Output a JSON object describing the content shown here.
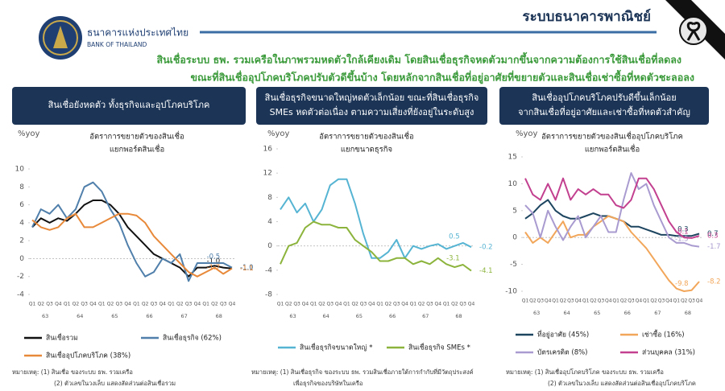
{
  "header": {
    "org_th": "ธนาคารแห่งประเทศไทย",
    "org_en": "BANK OF THAILAND",
    "section": "ระบบธนาคารพาณิชย์"
  },
  "headline": [
    "สินเชื่อระบบ ธพ. รวมเครือในภาพรวมหดตัวใกล้เคียงเดิม โดยสินเชื่อธุรกิจหดตัวมากขึ้นจากความต้องการใช้สินเชื่อที่ลดลง",
    "ขณะที่สินเชื่ออุปโภคบริโภคปรับตัวดีขึ้นบ้าง โดยหลักจากสินเชื่อที่อยู่อาศัยที่ขยายตัวและสินเชื่อเช่าซื้อที่หดตัวชะลอลง"
  ],
  "chart_data": [
    {
      "type": "line",
      "box": [
        "สินเชื่อยังหดตัว ทั้งธุรกิจและอุปโภคบริโภค"
      ],
      "title": [
        "อัตราการขยายตัวของสินเชื่อ",
        "แยกพอร์ตสินเชื่อ"
      ],
      "y_label": "%yoy",
      "categories": [
        "Q1",
        "Q2",
        "Q3",
        "Q4",
        "Q1",
        "Q2",
        "Q3",
        "Q4",
        "Q1",
        "Q2",
        "Q3",
        "Q4",
        "Q1",
        "Q2",
        "Q3",
        "Q4",
        "Q1",
        "Q2",
        "Q3",
        "Q4",
        "Q1",
        "Q2",
        "Q3",
        "Q4"
      ],
      "year_labels": [
        "63",
        "64",
        "65",
        "66",
        "67",
        "68"
      ],
      "ylim": [
        -4,
        10
      ],
      "yticks": [
        -4,
        -2,
        0,
        2,
        4,
        6,
        8,
        10
      ],
      "series": [
        {
          "name": "สินเชื่อรวม",
          "color": "#111111",
          "values": [
            3.5,
            4.5,
            4.0,
            4.5,
            4.2,
            5.0,
            6.0,
            6.5,
            6.5,
            6.0,
            5.0,
            3.5,
            2.5,
            1.5,
            0.5,
            0,
            -0.5,
            -1.0,
            -2.0,
            -1.0,
            -1.0,
            -0.8,
            -1.0,
            -1.1
          ],
          "value_labels": [
            null,
            null,
            null,
            null,
            null,
            null,
            null,
            null,
            null,
            null,
            null,
            null,
            null,
            null,
            null,
            null,
            null,
            null,
            null,
            null,
            null,
            null,
            "-1.0",
            "-1.1"
          ]
        },
        {
          "name": "สินเชื่อธุรกิจ (62%)",
          "color": "#4f7faa",
          "values": [
            3.5,
            5.5,
            5.0,
            6.0,
            4.5,
            5.5,
            8.0,
            8.5,
            7.5,
            5.5,
            4.0,
            1.5,
            -0.5,
            -2.0,
            -1.5,
            0,
            -0.5,
            0.5,
            -2.5,
            -0.5,
            -0.5,
            -0.5,
            -0.5,
            -1.0
          ],
          "value_labels": [
            null,
            null,
            null,
            null,
            null,
            null,
            null,
            null,
            null,
            null,
            null,
            null,
            null,
            null,
            null,
            null,
            null,
            null,
            null,
            null,
            null,
            null,
            "-0.5",
            "-1.0"
          ]
        },
        {
          "name": "สินเชื่ออุปโภคบริโภค (38%)",
          "color": "#e8893a",
          "values": [
            4.3,
            3.5,
            3.2,
            3.5,
            4.5,
            5.0,
            3.5,
            3.5,
            4.0,
            4.5,
            5.0,
            5.0,
            4.8,
            4.0,
            2.5,
            1.5,
            0.5,
            -0.5,
            -1.5,
            -2.0,
            -1.5,
            -1.0,
            -1.7,
            -1.1
          ],
          "value_labels": [
            null,
            null,
            null,
            null,
            null,
            null,
            null,
            null,
            null,
            null,
            null,
            null,
            null,
            null,
            null,
            null,
            null,
            null,
            null,
            null,
            null,
            null,
            "-1.7",
            "-1.1"
          ]
        }
      ],
      "notes": [
        "หมายเหตุ: (1) สินเชื่อ ของระบบ ธพ. รวมเครือ",
        "(2) ตัวเลขในวงเล็บ แสดงสัดส่วนต่อสินเชื่อรวม"
      ]
    },
    {
      "type": "line",
      "box": [
        "สินเชื่อธุรกิจขนาดใหญ่หดตัวเล็กน้อย ขณะที่สินเชื่อธุรกิจ",
        "SMEs หดตัวต่อเนื่อง ตามความเสี่ยงที่ยังอยู่ในระดับสูง"
      ],
      "title": [
        "อัตราการขยายตัวของสินเชื่อ",
        "แยกขนาดธุรกิจ"
      ],
      "y_label": "%yoy",
      "categories": [
        "Q1",
        "Q2",
        "Q3",
        "Q4",
        "Q1",
        "Q2",
        "Q3",
        "Q4",
        "Q1",
        "Q2",
        "Q3",
        "Q4",
        "Q1",
        "Q2",
        "Q3",
        "Q4",
        "Q1",
        "Q2",
        "Q3",
        "Q4",
        "Q1",
        "Q2",
        "Q3",
        "Q4"
      ],
      "year_labels": [
        "63",
        "64",
        "65",
        "66",
        "67",
        "68"
      ],
      "ylim": [
        -8,
        16
      ],
      "yticks": [
        -8,
        -4,
        0,
        4,
        8,
        12,
        16
      ],
      "series": [
        {
          "name": "สินเชื่อธุรกิจขนาดใหญ่ *",
          "color": "#56b4d3",
          "values": [
            6,
            8,
            5.5,
            7,
            4,
            6,
            10,
            11,
            11,
            7,
            2,
            -2,
            -2,
            -1,
            1,
            -2,
            0,
            -0.5,
            0,
            0.3,
            -0.5,
            0,
            0.5,
            -0.2
          ],
          "value_labels": [
            null,
            null,
            null,
            null,
            null,
            null,
            null,
            null,
            null,
            null,
            null,
            null,
            null,
            null,
            null,
            null,
            null,
            null,
            null,
            null,
            null,
            null,
            "0.5",
            "-0.2"
          ]
        },
        {
          "name": "สินเชื่อธุรกิจ SMEs *",
          "color": "#8cb43c",
          "values": [
            -3,
            0,
            0.5,
            3,
            4,
            3.5,
            3.5,
            3,
            3,
            1,
            0,
            -1,
            -2.5,
            -2.5,
            -2,
            -2,
            -3,
            -2.5,
            -3,
            -2,
            -3,
            -3.5,
            -3.1,
            -4.1
          ],
          "value_labels": [
            null,
            null,
            null,
            null,
            null,
            null,
            null,
            null,
            null,
            null,
            null,
            null,
            null,
            null,
            null,
            null,
            null,
            null,
            null,
            null,
            null,
            null,
            "-3.1",
            "-4.1"
          ]
        }
      ],
      "notes": [
        "หมายเหตุ: (1) สินเชื่อธุรกิจ ของระบบ ธพ. รวมสินเชื่อภายใต้การกำกับที่มีวัตถุประสงค์",
        "เพื่อธุรกิจของบริษัทในเครือ"
      ]
    },
    {
      "type": "line",
      "box": [
        "สินเชื่ออุปโภคบริโภคปรับดีขึ้นเล็กน้อย",
        "จากสินเชื่อที่อยู่อาศัยและเช่าซื้อที่หดตัวสำคัญ"
      ],
      "title": [
        "อัตราการขยายตัวของสินเชื่ออุปโภคบริโภค",
        "แยกพอร์ตสินเชื่อ"
      ],
      "y_label": "%yoy",
      "categories": [
        "Q1",
        "Q2",
        "Q3",
        "Q4",
        "Q1",
        "Q2",
        "Q3",
        "Q4",
        "Q1",
        "Q2",
        "Q3",
        "Q4",
        "Q1",
        "Q2",
        "Q3",
        "Q4",
        "Q1",
        "Q2",
        "Q3",
        "Q4",
        "Q1",
        "Q2",
        "Q3",
        "Q4"
      ],
      "year_labels": [
        "63",
        "64",
        "65",
        "66",
        "67",
        "68"
      ],
      "ylim": [
        -10,
        15
      ],
      "yticks": [
        -10,
        -5,
        0,
        5,
        10,
        15
      ],
      "series": [
        {
          "name": "ที่อยู่อาศัย (45%)",
          "color": "#1d4560",
          "values": [
            3.5,
            4.5,
            6,
            7,
            5,
            4,
            3.5,
            3.5,
            4,
            4.5,
            4,
            4,
            3.5,
            3,
            2,
            2,
            1.5,
            1,
            0.5,
            0.5,
            0.3,
            0.3,
            0.3,
            0.7
          ],
          "value_labels": [
            null,
            null,
            null,
            null,
            null,
            null,
            null,
            null,
            null,
            null,
            null,
            null,
            null,
            null,
            null,
            null,
            null,
            null,
            null,
            null,
            null,
            null,
            "0.3",
            "0.7"
          ]
        },
        {
          "name": "เช่าซื้อ (16%)",
          "color": "#f2a65a",
          "values": [
            1,
            -1,
            0,
            -1,
            1,
            3,
            0,
            0.5,
            0.5,
            2,
            3,
            4,
            3.5,
            3,
            1,
            -0.5,
            -2,
            -4,
            -6,
            -8,
            -9.5,
            -10,
            -9.8,
            -8.2
          ],
          "value_labels": [
            null,
            null,
            null,
            null,
            null,
            null,
            null,
            null,
            null,
            null,
            null,
            null,
            null,
            null,
            null,
            null,
            null,
            null,
            null,
            null,
            null,
            null,
            "-9.8",
            "-8.2"
          ]
        },
        {
          "name": "บัตรเครดิต (8%)",
          "color": "#a99bd0",
          "values": [
            6,
            4.5,
            0,
            5,
            2,
            -0.5,
            2,
            4,
            0,
            2,
            4,
            1,
            1,
            7,
            12,
            9,
            10,
            6,
            3,
            0,
            -1,
            -1,
            -1.5,
            -1.7
          ],
          "value_labels": [
            null,
            null,
            null,
            null,
            null,
            null,
            null,
            null,
            null,
            null,
            null,
            null,
            null,
            null,
            null,
            null,
            null,
            null,
            null,
            null,
            null,
            null,
            "-1.5",
            "-1.7"
          ]
        },
        {
          "name": "ส่วนบุคคล (31%)",
          "color": "#c2408f",
          "values": [
            11,
            8,
            7,
            10,
            7,
            11,
            7,
            9,
            8,
            9,
            8,
            8,
            6,
            5.5,
            7,
            11,
            11,
            9,
            6,
            3,
            1,
            0,
            -0.1,
            0.3
          ],
          "value_labels": [
            null,
            null,
            null,
            null,
            null,
            null,
            null,
            null,
            null,
            null,
            null,
            null,
            null,
            null,
            null,
            null,
            null,
            null,
            null,
            null,
            null,
            null,
            "-0.1",
            "0.3"
          ]
        }
      ],
      "notes": [
        "หมายเหตุ: (1) สินเชื่ออุปโภคบริโภค ของระบบ ธพ. รวมเครือ",
        "(2) ตัวเลขในวงเล็บ แสดงสัดส่วนต่อสินเชื่ออุปโภคบริโภค"
      ]
    }
  ]
}
